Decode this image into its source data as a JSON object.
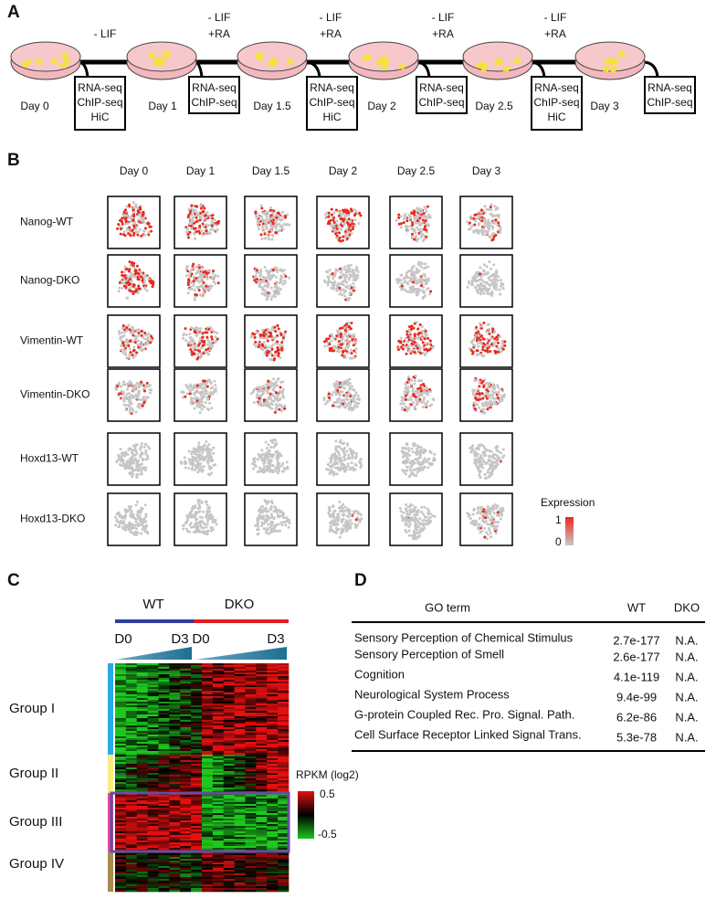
{
  "panel_labels": [
    "A",
    "B",
    "C",
    "D"
  ],
  "panel_a": {
    "days": [
      "Day 0",
      "Day 1",
      "Day 1.5",
      "Day 2",
      "Day 2.5",
      "Day 3"
    ],
    "treatments": [
      [
        "- LIF"
      ],
      [
        "- LIF",
        "+RA"
      ],
      [
        "- LIF",
        "+RA"
      ],
      [
        "- LIF",
        "+RA"
      ],
      [
        "- LIF",
        "+RA"
      ]
    ],
    "assays": [
      [
        "RNA-seq",
        "ChIP-seq",
        "HiC"
      ],
      [
        "RNA-seq",
        "ChIP-seq"
      ],
      [
        "RNA-seq",
        "ChIP-seq",
        "HiC"
      ],
      [
        "RNA-seq",
        "ChIP-seq"
      ],
      [
        "RNA-seq",
        "ChIP-seq",
        "HiC"
      ],
      [
        "RNA-seq",
        "ChIP-seq"
      ]
    ]
  },
  "panel_b": {
    "columns": [
      "Day 0",
      "Day 1",
      "Day 1.5",
      "Day 2",
      "Day 2.5",
      "Day 3"
    ],
    "rows": [
      "Nanog-WT",
      "Nanog-DKO",
      "Vimentin-WT",
      "Vimentin-DKO",
      "Hoxd13-WT",
      "Hoxd13-DKO"
    ],
    "legend": {
      "title": "Expression",
      "max": "1",
      "min": "0"
    }
  },
  "panel_c": {
    "conditions": [
      "WT",
      "DKO"
    ],
    "time_labels": [
      "D0",
      "D3",
      "D0",
      "D3"
    ],
    "groups": [
      "Group I",
      "Group II",
      "Group III",
      "Group IV"
    ],
    "legend": {
      "title": "RPKM (log2)",
      "max": "0.5",
      "min": "-0.5"
    }
  },
  "panel_d": {
    "header": [
      "GO term",
      "WT",
      "DKO"
    ],
    "rows": [
      [
        "Sensory Perception of Chemical Stimulus",
        "2.7e-177",
        "N.A."
      ],
      [
        "Sensory Perception of Smell",
        "2.6e-177",
        "N.A."
      ],
      [
        "Cognition",
        "4.1e-119",
        "N.A."
      ],
      [
        "Neurological System Process",
        "9.4e-99",
        "N.A."
      ],
      [
        "G-protein Coupled Rec. Pro. Signal. Path.",
        "6.2e-86",
        "N.A."
      ],
      [
        "Cell Surface Receptor Linked Signal Trans.",
        "5.3e-78",
        "N.A."
      ]
    ]
  }
}
